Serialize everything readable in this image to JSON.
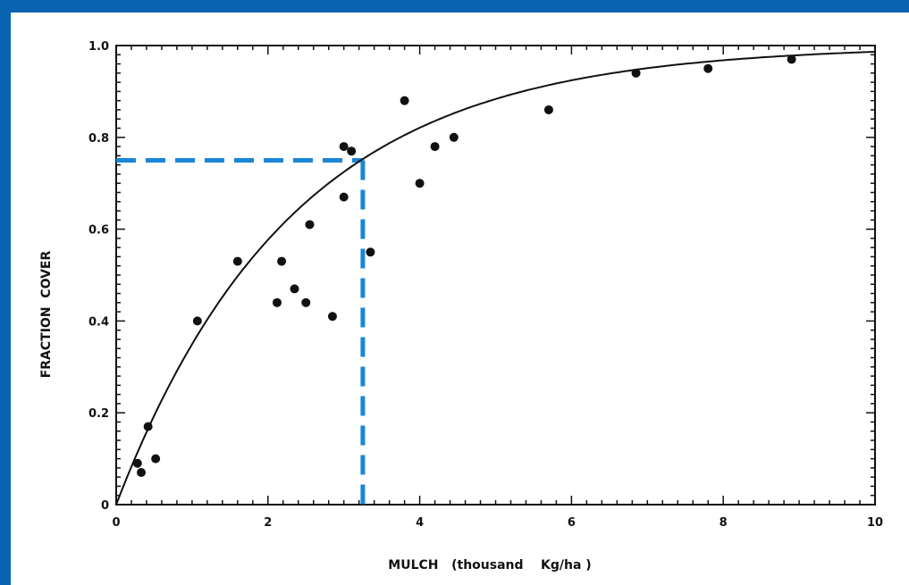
{
  "chart_data": {
    "type": "scatter",
    "title": "",
    "xlabel": "MULCH   (thousand    Kg/ha )",
    "ylabel": "FRACTION  COVER",
    "xlim": [
      0,
      10
    ],
    "ylim": [
      0,
      1.0
    ],
    "x_ticks": [
      0,
      2,
      4,
      6,
      8,
      10
    ],
    "x_tick_labels": [
      "0",
      "2",
      "4",
      "6",
      "8",
      "10"
    ],
    "y_ticks": [
      0,
      0.2,
      0.4,
      0.6,
      0.8,
      1.0
    ],
    "y_tick_labels": [
      "0",
      "0.2",
      "0.4",
      "0.6",
      "0.8",
      "1.0"
    ],
    "grid": false,
    "points": [
      {
        "x": 0.28,
        "y": 0.09
      },
      {
        "x": 0.33,
        "y": 0.07
      },
      {
        "x": 0.42,
        "y": 0.17
      },
      {
        "x": 0.52,
        "y": 0.1
      },
      {
        "x": 1.07,
        "y": 0.4
      },
      {
        "x": 1.6,
        "y": 0.53
      },
      {
        "x": 2.12,
        "y": 0.44
      },
      {
        "x": 2.18,
        "y": 0.53
      },
      {
        "x": 2.35,
        "y": 0.47
      },
      {
        "x": 2.5,
        "y": 0.44
      },
      {
        "x": 2.55,
        "y": 0.61
      },
      {
        "x": 2.85,
        "y": 0.41
      },
      {
        "x": 3.0,
        "y": 0.78
      },
      {
        "x": 3.0,
        "y": 0.67
      },
      {
        "x": 3.1,
        "y": 0.77
      },
      {
        "x": 3.35,
        "y": 0.55
      },
      {
        "x": 3.8,
        "y": 0.88
      },
      {
        "x": 4.0,
        "y": 0.7
      },
      {
        "x": 4.2,
        "y": 0.78
      },
      {
        "x": 4.45,
        "y": 0.8
      },
      {
        "x": 5.7,
        "y": 0.86
      },
      {
        "x": 6.85,
        "y": 0.94
      },
      {
        "x": 7.8,
        "y": 0.95
      },
      {
        "x": 8.9,
        "y": 0.97
      }
    ],
    "fit_curve": {
      "model": "1 - exp(-a*x)",
      "a": 0.43
    },
    "reference_lines": {
      "color": "#1b86d6",
      "x": 3.25,
      "y": 0.75
    },
    "colors": {
      "frame": "#0a63b0",
      "ink": "#111111"
    }
  }
}
